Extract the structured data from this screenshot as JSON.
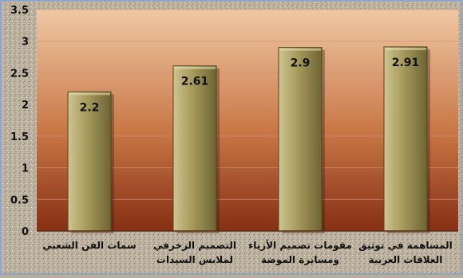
{
  "chart_data": {
    "type": "bar",
    "categories": [
      "سمات الفن الشعبي",
      "التصميم الزخرفي لملابس السيدات",
      "مقومات تصميم الأزياء ومسايرة الموضة",
      "المساهمة في توثيق العلاقات العربية"
    ],
    "category_lines": [
      [
        "سمات الفن الشعبي"
      ],
      [
        "التصميم الزخرفي",
        "لملابس السيدات"
      ],
      [
        "مقومات تصميم الأزياء",
        "ومسايرة الموضة"
      ],
      [
        "المساهمة في توثيق",
        "العلاقات العربية"
      ]
    ],
    "values": [
      2.2,
      2.61,
      2.9,
      2.91
    ],
    "value_labels": [
      "2.2",
      "2.61",
      "2.9",
      "2.91"
    ],
    "y_ticks": [
      "0",
      "0.5",
      "1",
      "1.5",
      "2",
      "2.5",
      "3",
      "3.5"
    ],
    "ylim": [
      0,
      3.5
    ],
    "grid": true,
    "legend": "none",
    "title": "",
    "xlabel": "",
    "ylabel": ""
  },
  "colors": {
    "plot_top": "#efc8a4",
    "plot_bottom": "#862f14",
    "bar_light": "#cdc591",
    "bar_mid": "#a5995a",
    "bar_dark": "#6d6434",
    "frame": "#8fa6c8",
    "text": "#111111",
    "gridline": "#c99477"
  }
}
